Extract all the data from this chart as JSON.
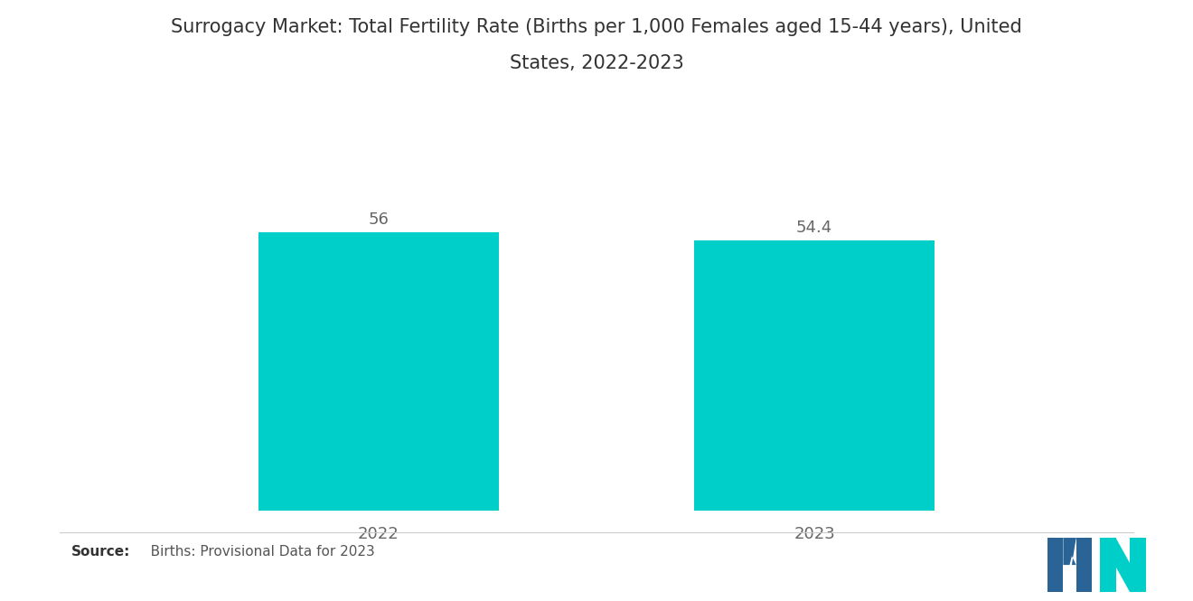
{
  "title_line1": "Surrogacy Market: Total Fertility Rate (Births per 1,000 Females aged 15-44 years), United",
  "title_line2": "States, 2022-2023",
  "categories": [
    "2022",
    "2023"
  ],
  "values": [
    56,
    54.4
  ],
  "bar_color": "#00CEC9",
  "background_color": "#ffffff",
  "value_labels": [
    "56",
    "54.4"
  ],
  "source_bold": "Source:",
  "source_rest": "   Births: Provisional Data for 2023",
  "title_fontsize": 15,
  "label_fontsize": 13,
  "value_fontsize": 13,
  "source_fontsize": 11,
  "ylim": [
    0,
    70
  ],
  "bar_width": 0.55,
  "logo_blue": "#2A6496",
  "logo_teal": "#00CEC9"
}
